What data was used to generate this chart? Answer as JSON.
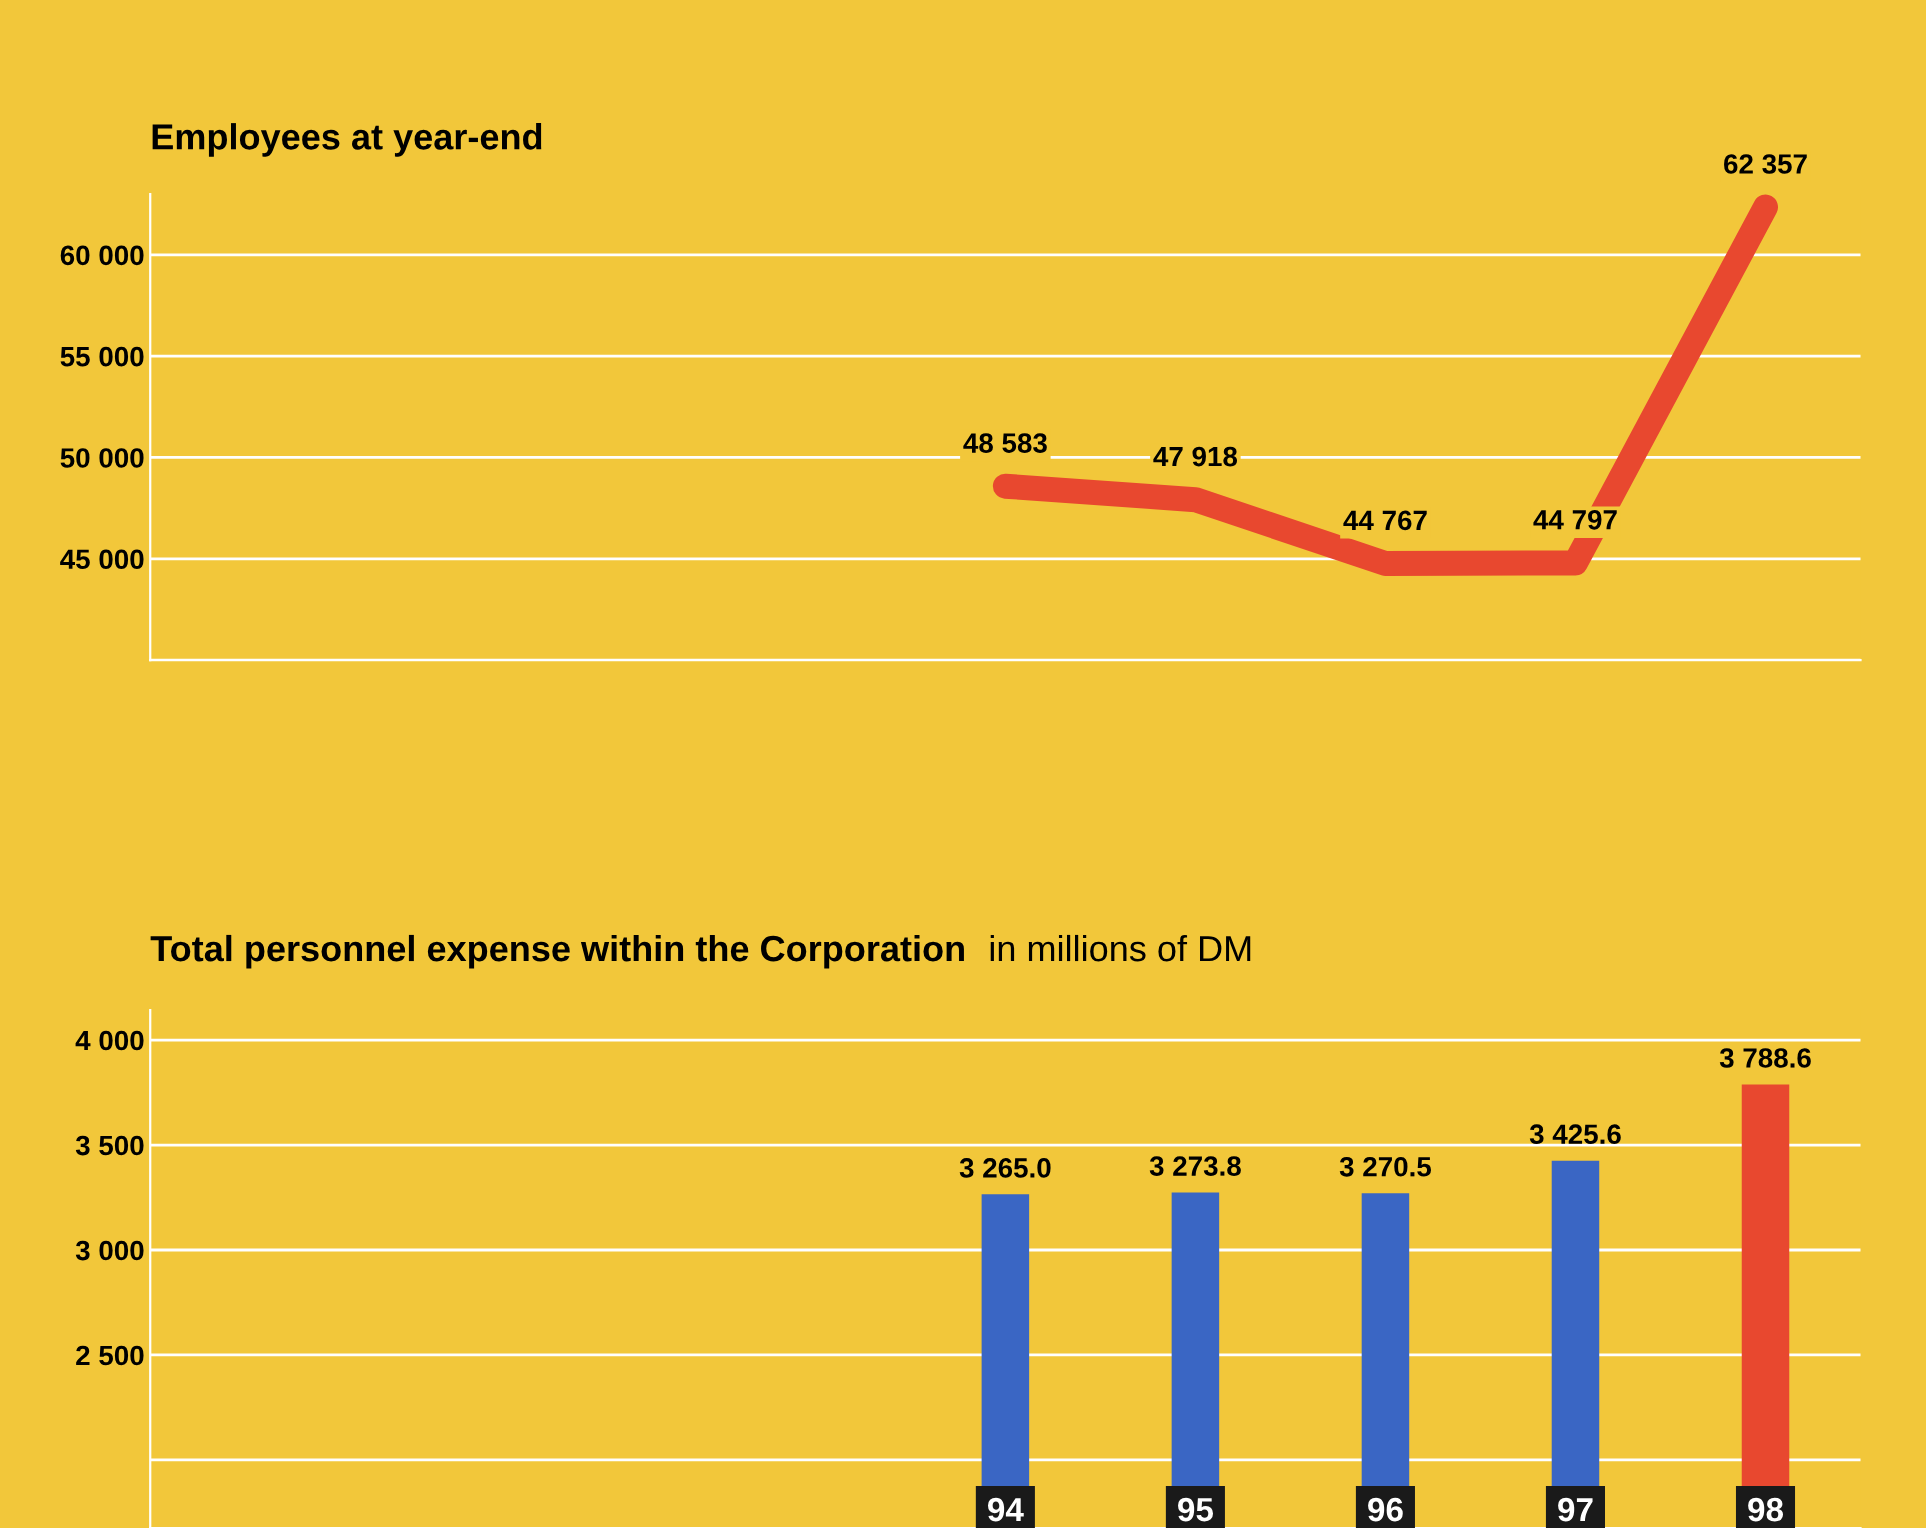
{
  "chart_data": [
    {
      "type": "line",
      "title": "Employees at year-end",
      "categories": [
        null,
        null,
        null,
        null,
        "94",
        "95",
        "96",
        "97",
        "98"
      ],
      "series": [
        {
          "color": "#e8482f",
          "values": [
            null,
            null,
            null,
            null,
            48583,
            47918,
            44767,
            44797,
            62357
          ]
        }
      ],
      "ylim": [
        40000,
        63000
      ],
      "yticks": [
        {
          "value": 40000,
          "label": null
        },
        {
          "value": 45000,
          "label": "45 000"
        },
        {
          "value": 50000,
          "label": "50 000"
        },
        {
          "value": 55000,
          "label": "55 000"
        },
        {
          "value": 60000,
          "label": "60 000"
        }
      ],
      "grid": "y",
      "tick_labels": "y",
      "line_style": "solid",
      "value_labels": [
        null,
        null,
        null,
        null,
        "48 583",
        "47 918",
        "44 767",
        "44 797",
        "62 357"
      ]
    },
    {
      "type": "bar",
      "title": "Total personnel expense within the Corporation",
      "subtitle": "in millions of DM",
      "categories": [
        null,
        null,
        null,
        null,
        "94",
        "95",
        "96",
        "97",
        "98"
      ],
      "values": [
        null,
        null,
        null,
        null,
        3265.0,
        3273.8,
        3270.5,
        3425.6,
        3788.6
      ],
      "colors": [
        "#3a66c4",
        "#3a66c4",
        "#3a66c4",
        "#3a66c4",
        "#3a66c4",
        "#3a66c4",
        "#3a66c4",
        "#3a66c4",
        "#e8482f"
      ],
      "ylim": [
        1676,
        4143
      ],
      "yticks": [
        {
          "value": 2000,
          "label": null
        },
        {
          "value": 2500,
          "label": "2 500"
        },
        {
          "value": 3000,
          "label": "3 000"
        },
        {
          "value": 3500,
          "label": "3 500"
        },
        {
          "value": 4000,
          "label": "4 000"
        }
      ],
      "grid": "y",
      "value_labels": [
        null,
        null,
        null,
        null,
        "3 265.0",
        "3 273.8",
        "3 270.5",
        "3 425.6",
        "3 788.6"
      ]
    }
  ]
}
